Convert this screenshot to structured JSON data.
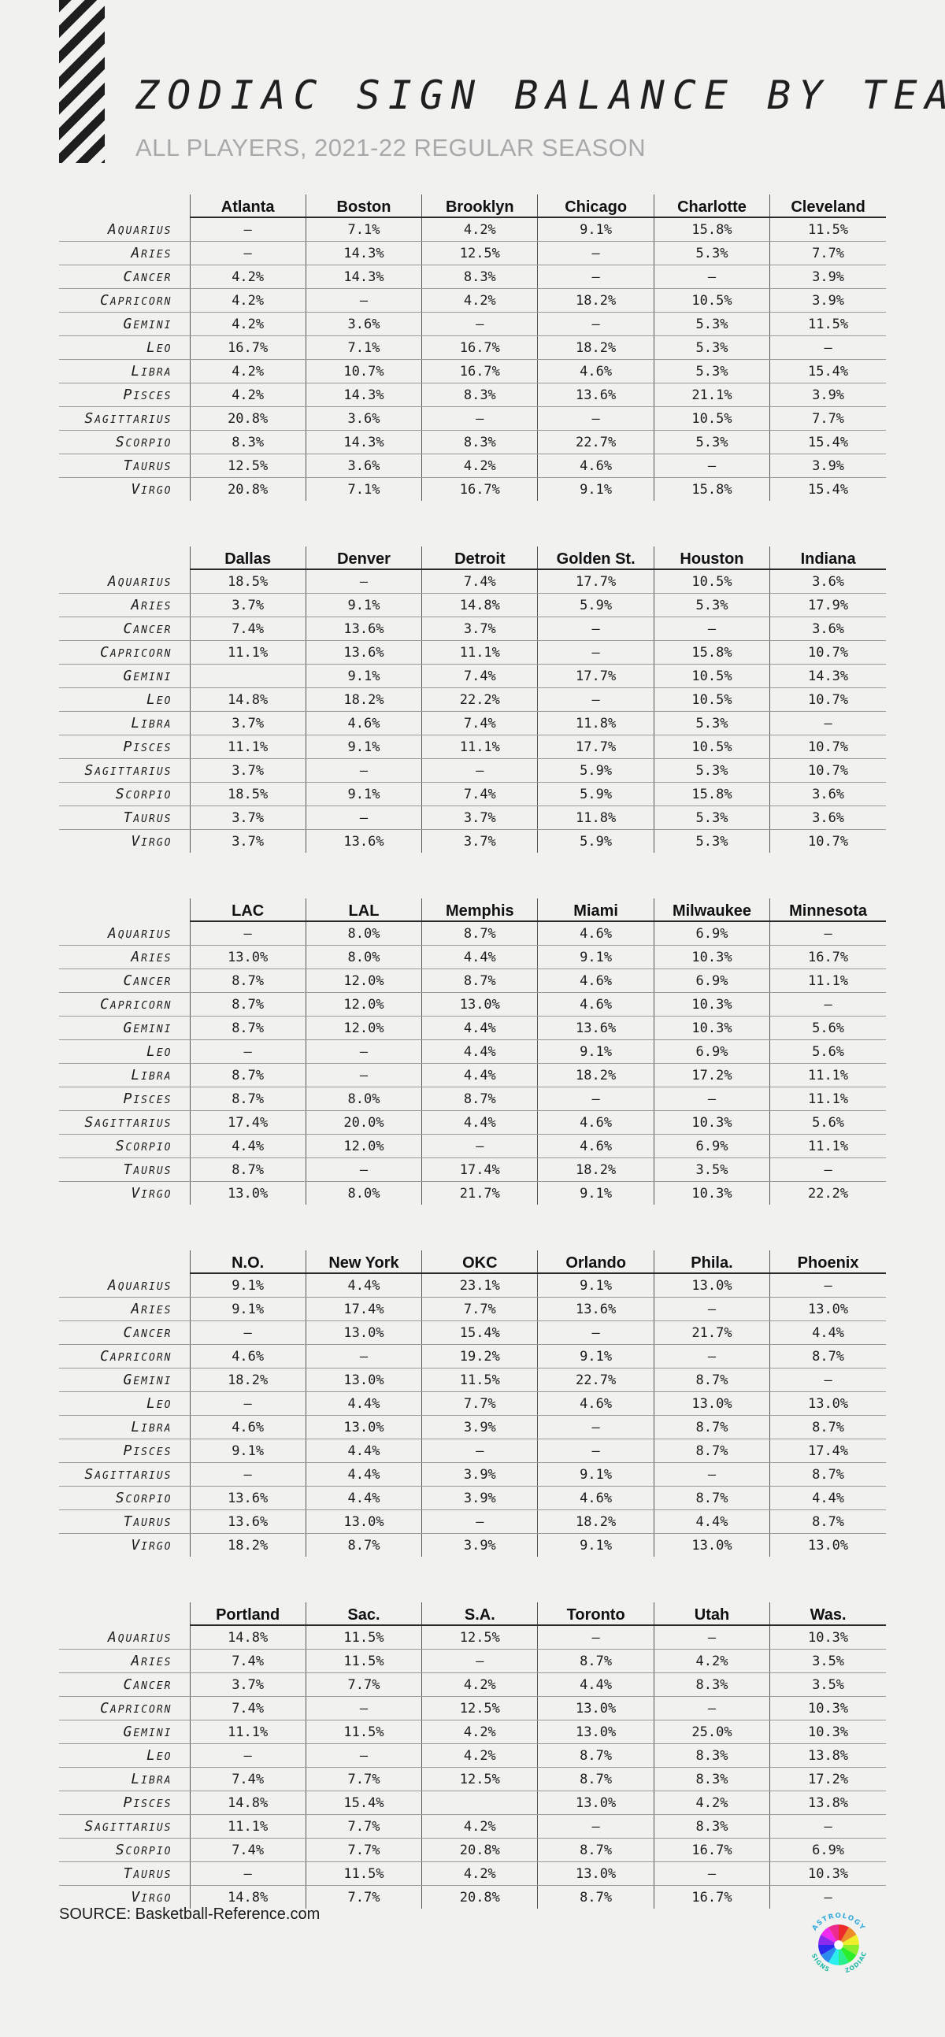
{
  "title": "ZODIAC SIGN BALANCE BY TEAM",
  "subtitle": "ALL PLAYERS, 2021-22 REGULAR SEASON",
  "source": "SOURCE: Basketball-Reference.com",
  "logo": {
    "top_text": "ASTROLOGY",
    "right_text": "ZODIAC",
    "left_text": "SIGNS",
    "icon": "zodiac-wheel-icon"
  },
  "colors": {
    "background": "#f1f1f0",
    "ink": "#1c1c1c",
    "subtitle": "#a9a9a9"
  },
  "chart_data": {
    "type": "table",
    "signs": [
      "Aquarius",
      "Aries",
      "Cancer",
      "Capricorn",
      "Gemini",
      "Leo",
      "Libra",
      "Pisces",
      "Sagittarius",
      "Scorpio",
      "Taurus",
      "Virgo"
    ],
    "tables": [
      {
        "teams": [
          "Atlanta",
          "Boston",
          "Brooklyn",
          "Chicago",
          "Charlotte",
          "Cleveland"
        ],
        "rows": [
          [
            "—",
            "7.1%",
            "4.2%",
            "9.1%",
            "15.8%",
            "11.5%"
          ],
          [
            "—",
            "14.3%",
            "12.5%",
            "—",
            "5.3%",
            "7.7%"
          ],
          [
            "4.2%",
            "14.3%",
            "8.3%",
            "—",
            "—",
            "3.9%"
          ],
          [
            "4.2%",
            "—",
            "4.2%",
            "18.2%",
            "10.5%",
            "3.9%"
          ],
          [
            "4.2%",
            "3.6%",
            "—",
            "—",
            "5.3%",
            "11.5%"
          ],
          [
            "16.7%",
            "7.1%",
            "16.7%",
            "18.2%",
            "5.3%",
            "—"
          ],
          [
            "4.2%",
            "10.7%",
            "16.7%",
            "4.6%",
            "5.3%",
            "15.4%"
          ],
          [
            "4.2%",
            "14.3%",
            "8.3%",
            "13.6%",
            "21.1%",
            "3.9%"
          ],
          [
            "20.8%",
            "3.6%",
            "—",
            "—",
            "10.5%",
            "7.7%"
          ],
          [
            "8.3%",
            "14.3%",
            "8.3%",
            "22.7%",
            "5.3%",
            "15.4%"
          ],
          [
            "12.5%",
            "3.6%",
            "4.2%",
            "4.6%",
            "—",
            "3.9%"
          ],
          [
            "20.8%",
            "7.1%",
            "16.7%",
            "9.1%",
            "15.8%",
            "15.4%"
          ]
        ]
      },
      {
        "teams": [
          "Dallas",
          "Denver",
          "Detroit",
          "Golden St.",
          "Houston",
          "Indiana"
        ],
        "rows": [
          [
            "18.5%",
            "—",
            "7.4%",
            "17.7%",
            "10.5%",
            "3.6%"
          ],
          [
            "3.7%",
            "9.1%",
            "14.8%",
            "5.9%",
            "5.3%",
            "17.9%"
          ],
          [
            "7.4%",
            "13.6%",
            "3.7%",
            "—",
            "—",
            "3.6%"
          ],
          [
            "11.1%",
            "13.6%",
            "11.1%",
            "—",
            "15.8%",
            "10.7%"
          ],
          [
            "",
            "9.1%",
            "7.4%",
            "17.7%",
            "10.5%",
            "14.3%"
          ],
          [
            "14.8%",
            "18.2%",
            "22.2%",
            "—",
            "10.5%",
            "10.7%"
          ],
          [
            "3.7%",
            "4.6%",
            "7.4%",
            "11.8%",
            "5.3%",
            "—"
          ],
          [
            "11.1%",
            "9.1%",
            "11.1%",
            "17.7%",
            "10.5%",
            "10.7%"
          ],
          [
            "3.7%",
            "—",
            "—",
            "5.9%",
            "5.3%",
            "10.7%"
          ],
          [
            "18.5%",
            "9.1%",
            "7.4%",
            "5.9%",
            "15.8%",
            "3.6%"
          ],
          [
            "3.7%",
            "—",
            "3.7%",
            "11.8%",
            "5.3%",
            "3.6%"
          ],
          [
            "3.7%",
            "13.6%",
            "3.7%",
            "5.9%",
            "5.3%",
            "10.7%"
          ]
        ]
      },
      {
        "teams": [
          "LAC",
          "LAL",
          "Memphis",
          "Miami",
          "Milwaukee",
          "Minnesota"
        ],
        "rows": [
          [
            "—",
            "8.0%",
            "8.7%",
            "4.6%",
            "6.9%",
            "—"
          ],
          [
            "13.0%",
            "8.0%",
            "4.4%",
            "9.1%",
            "10.3%",
            "16.7%"
          ],
          [
            "8.7%",
            "12.0%",
            "8.7%",
            "4.6%",
            "6.9%",
            "11.1%"
          ],
          [
            "8.7%",
            "12.0%",
            "13.0%",
            "4.6%",
            "10.3%",
            "—"
          ],
          [
            "8.7%",
            "12.0%",
            "4.4%",
            "13.6%",
            "10.3%",
            "5.6%"
          ],
          [
            "—",
            "—",
            "4.4%",
            "9.1%",
            "6.9%",
            "5.6%"
          ],
          [
            "8.7%",
            "—",
            "4.4%",
            "18.2%",
            "17.2%",
            "11.1%"
          ],
          [
            "8.7%",
            "8.0%",
            "8.7%",
            "—",
            "—",
            "11.1%"
          ],
          [
            "17.4%",
            "20.0%",
            "4.4%",
            "4.6%",
            "10.3%",
            "5.6%"
          ],
          [
            "4.4%",
            "12.0%",
            "—",
            "4.6%",
            "6.9%",
            "11.1%"
          ],
          [
            "8.7%",
            "—",
            "17.4%",
            "18.2%",
            "3.5%",
            "—"
          ],
          [
            "13.0%",
            "8.0%",
            "21.7%",
            "9.1%",
            "10.3%",
            "22.2%"
          ]
        ]
      },
      {
        "teams": [
          "N.O.",
          "New York",
          "OKC",
          "Orlando",
          "Phila.",
          "Phoenix"
        ],
        "rows": [
          [
            "9.1%",
            "4.4%",
            "23.1%",
            "9.1%",
            "13.0%",
            "—"
          ],
          [
            "9.1%",
            "17.4%",
            "7.7%",
            "13.6%",
            "—",
            "13.0%"
          ],
          [
            "—",
            "13.0%",
            "15.4%",
            "—",
            "21.7%",
            "4.4%"
          ],
          [
            "4.6%",
            "—",
            "19.2%",
            "9.1%",
            "—",
            "8.7%"
          ],
          [
            "18.2%",
            "13.0%",
            "11.5%",
            "22.7%",
            "8.7%",
            "—"
          ],
          [
            "—",
            "4.4%",
            "7.7%",
            "4.6%",
            "13.0%",
            "13.0%"
          ],
          [
            "4.6%",
            "13.0%",
            "3.9%",
            "—",
            "8.7%",
            "8.7%"
          ],
          [
            "9.1%",
            "4.4%",
            "—",
            "—",
            "8.7%",
            "17.4%"
          ],
          [
            "—",
            "4.4%",
            "3.9%",
            "9.1%",
            "—",
            "8.7%"
          ],
          [
            "13.6%",
            "4.4%",
            "3.9%",
            "4.6%",
            "8.7%",
            "4.4%"
          ],
          [
            "13.6%",
            "13.0%",
            "—",
            "18.2%",
            "4.4%",
            "8.7%"
          ],
          [
            "18.2%",
            "8.7%",
            "3.9%",
            "9.1%",
            "13.0%",
            "13.0%"
          ]
        ]
      },
      {
        "teams": [
          "Portland",
          "Sac.",
          "S.A.",
          "Toronto",
          "Utah",
          "Was."
        ],
        "rows": [
          [
            "14.8%",
            "11.5%",
            "12.5%",
            "—",
            "—",
            "10.3%"
          ],
          [
            "7.4%",
            "11.5%",
            "—",
            "8.7%",
            "4.2%",
            "3.5%"
          ],
          [
            "3.7%",
            "7.7%",
            "4.2%",
            "4.4%",
            "8.3%",
            "3.5%"
          ],
          [
            "7.4%",
            "—",
            "12.5%",
            "13.0%",
            "—",
            "10.3%"
          ],
          [
            "11.1%",
            "11.5%",
            "4.2%",
            "13.0%",
            "25.0%",
            "10.3%"
          ],
          [
            "—",
            "—",
            "4.2%",
            "8.7%",
            "8.3%",
            "13.8%"
          ],
          [
            "7.4%",
            "7.7%",
            "12.5%",
            "8.7%",
            "8.3%",
            "17.2%"
          ],
          [
            "14.8%",
            "15.4%",
            "",
            "13.0%",
            "4.2%",
            "13.8%"
          ],
          [
            "11.1%",
            "7.7%",
            "4.2%",
            "—",
            "8.3%",
            "—"
          ],
          [
            "7.4%",
            "7.7%",
            "20.8%",
            "8.7%",
            "16.7%",
            "6.9%"
          ],
          [
            "—",
            "11.5%",
            "4.2%",
            "13.0%",
            "—",
            "10.3%"
          ],
          [
            "14.8%",
            "7.7%",
            "20.8%",
            "8.7%",
            "16.7%",
            "—"
          ]
        ]
      }
    ]
  }
}
